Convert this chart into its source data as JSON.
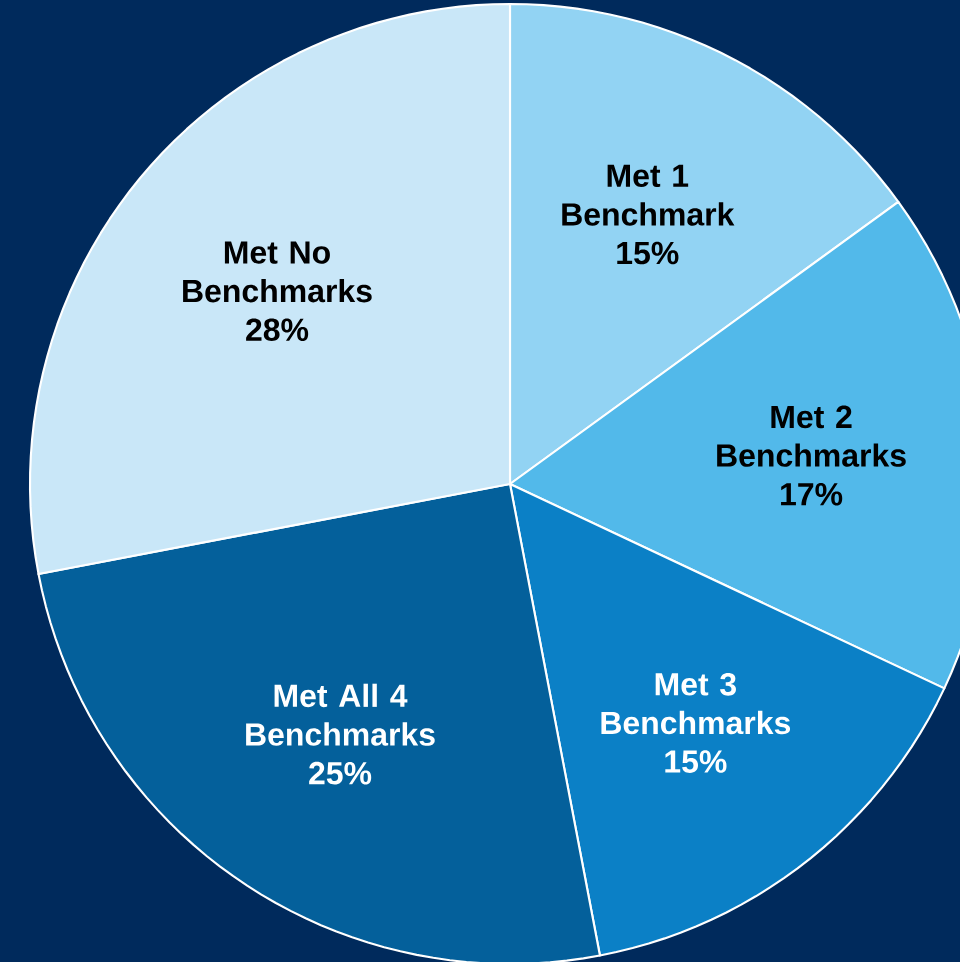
{
  "chart_data": {
    "type": "pie",
    "categories": [
      "Met 1 Benchmark",
      "Met 2 Benchmarks",
      "Met 3 Benchmarks",
      "Met All 4 Benchmarks",
      "Met No Benchmarks"
    ],
    "values": [
      15,
      17,
      15,
      25,
      28
    ],
    "value_labels": [
      "15%",
      "17%",
      "15%",
      "25%",
      "28%"
    ],
    "colors": [
      "#92d3f3",
      "#52b9ea",
      "#0b80c6",
      "#04609b",
      "#c9e7f8"
    ]
  }
}
